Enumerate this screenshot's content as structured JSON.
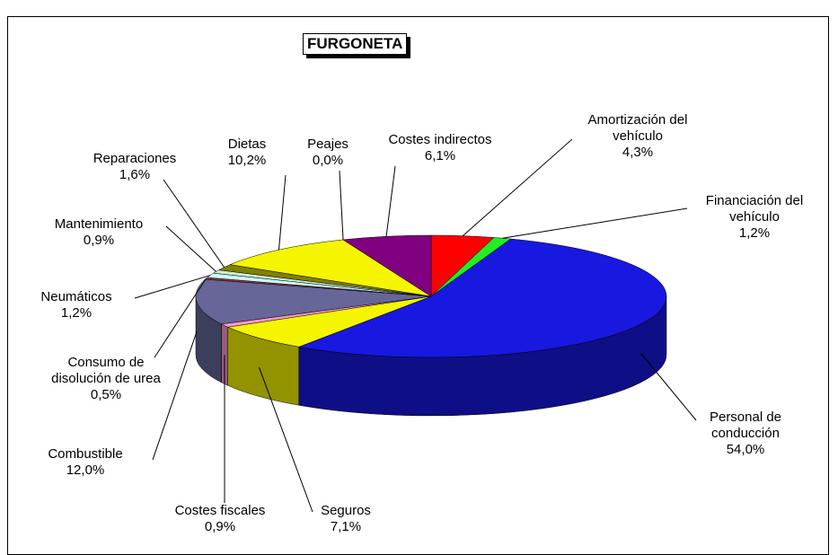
{
  "chart_data": {
    "type": "pie",
    "title": "FURGONETA",
    "categories": [
      "Amortización del vehículo",
      "Financiación del vehículo",
      "Personal de conducción",
      "Seguros",
      "Costes fiscales",
      "Combustible",
      "Consumo de disolución de urea",
      "Neumáticos",
      "Mantenimiento",
      "Reparaciones",
      "Dietas",
      "Peajes",
      "Costes indirectos"
    ],
    "values": [
      4.3,
      1.2,
      54.0,
      7.1,
      0.9,
      12.0,
      0.5,
      1.2,
      0.9,
      1.6,
      10.2,
      0.0,
      6.1
    ],
    "value_labels": [
      "4,3%",
      "1,2%",
      "54,0%",
      "7,1%",
      "0,9%",
      "12,0%",
      "0,5%",
      "1,2%",
      "0,9%",
      "1,6%",
      "10,2%",
      "0,0%",
      "6,1%"
    ],
    "colors": [
      "#ff0000",
      "#22ee22",
      "#1818e0",
      "#f5f500",
      "#ff99cc",
      "#666699",
      "#993344",
      "#ccffff",
      "#cceecc",
      "#808000",
      "#f5f500",
      "#00ffff",
      "#800080"
    ]
  }
}
